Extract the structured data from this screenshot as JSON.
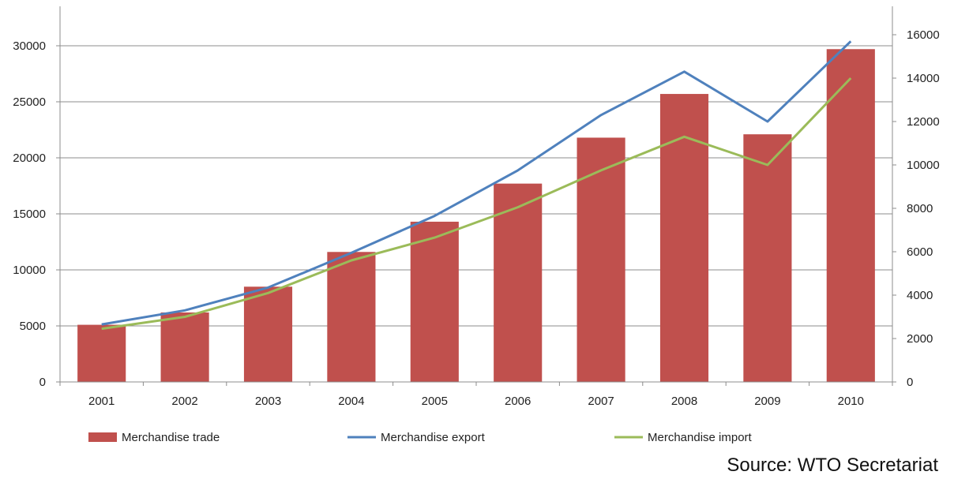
{
  "chart_data": {
    "type": "bar",
    "categories": [
      "2001",
      "2002",
      "2003",
      "2004",
      "2005",
      "2006",
      "2007",
      "2008",
      "2009",
      "2010"
    ],
    "series": [
      {
        "name": "Merchandise trade",
        "type": "bar",
        "axis": "left",
        "color": "#c0504d",
        "values": [
          5100,
          6200,
          8500,
          11600,
          14300,
          17700,
          21800,
          25700,
          22100,
          29700
        ]
      },
      {
        "name": "Merchandise export",
        "type": "line",
        "axis": "right",
        "color": "#4f81bd",
        "values": [
          2650,
          3300,
          4350,
          5950,
          7650,
          9750,
          12300,
          14300,
          12000,
          15700
        ]
      },
      {
        "name": "Merchandise import",
        "type": "line",
        "axis": "right",
        "color": "#9bbb59",
        "values": [
          2450,
          3000,
          4100,
          5600,
          6650,
          8050,
          9750,
          11300,
          10000,
          14000
        ]
      }
    ],
    "y_left": {
      "range": [
        0,
        30000
      ],
      "ticks": [
        "0",
        "5000",
        "10000",
        "15000",
        "20000",
        "25000",
        "30000"
      ]
    },
    "y_right": {
      "range": [
        0,
        16000
      ],
      "ticks": [
        "0",
        "2000",
        "4000",
        "6000",
        "8000",
        "10000",
        "12000",
        "14000",
        "16000"
      ]
    },
    "grid": "horizontal",
    "legend": "bottom",
    "title": "",
    "xlabel": "",
    "ylabel": ""
  },
  "source": "Source: WTO Secretariat"
}
